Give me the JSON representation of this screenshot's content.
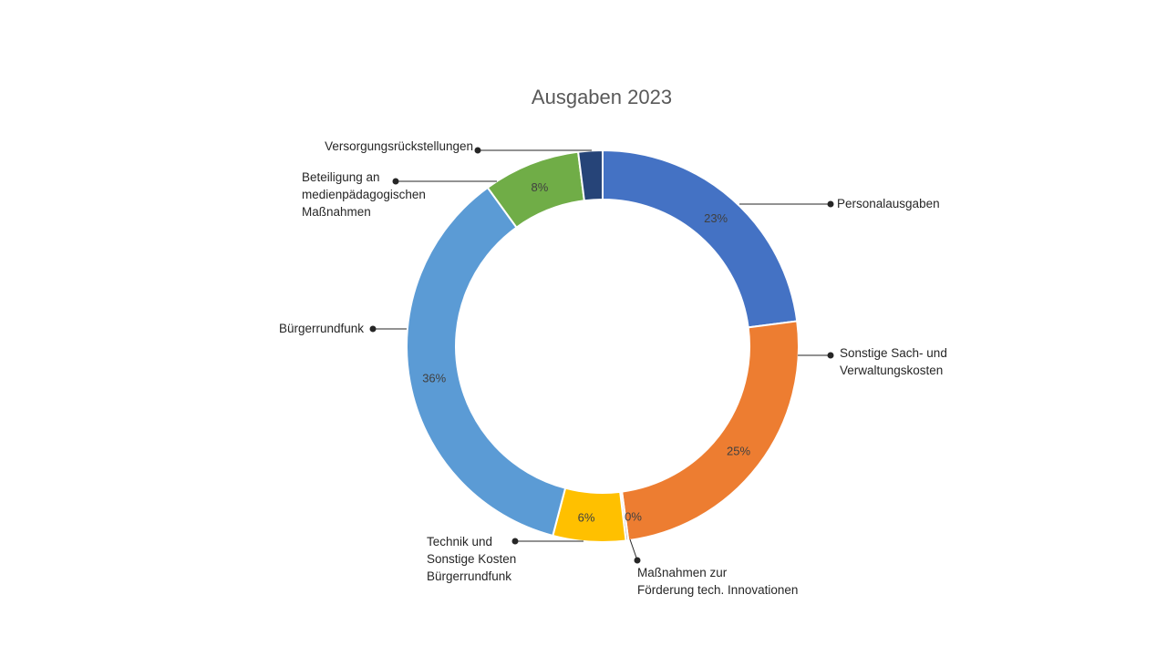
{
  "chart_data": {
    "type": "donut",
    "title": "Ausgaben 2023",
    "legend": "none",
    "slices": [
      {
        "label": "Personalausgaben",
        "value": 23,
        "pct_label": "23%",
        "color": "#4472C4"
      },
      {
        "label": "Sonstige Sach- und Verwaltungskosten",
        "lines": [
          "Sonstige Sach- und",
          "Verwaltungskosten"
        ],
        "value": 25,
        "pct_label": "25%",
        "color": "#ED7D31"
      },
      {
        "label": "Maßnahmen zur Förderung tech. Innovationen",
        "lines": [
          "Maßnahmen zur",
          "Förderung tech. Innovationen"
        ],
        "value": 0.2,
        "pct_label": "0%",
        "color": "#A5A5A5"
      },
      {
        "label": "Technik und Sonstige Kosten Bürgerrundfunk",
        "lines": [
          "Technik und",
          "Sonstige Kosten",
          "Bürgerrundfunk"
        ],
        "value": 6,
        "pct_label": "6%",
        "color": "#FFC000"
      },
      {
        "label": "Bürgerrundfunk",
        "value": 36,
        "pct_label": "36%",
        "color": "#5B9BD5"
      },
      {
        "label": "Beteiligung an medienpädagogischen Maßnahmen",
        "lines": [
          "Beteiligung an",
          "medienpädagogischen",
          "Maßnahmen"
        ],
        "value": 8,
        "pct_label": "8%",
        "color": "#70AD47"
      },
      {
        "label": "Versorgungsrückstellungen",
        "value": 2,
        "pct_label": "",
        "color": "#264478"
      }
    ]
  }
}
